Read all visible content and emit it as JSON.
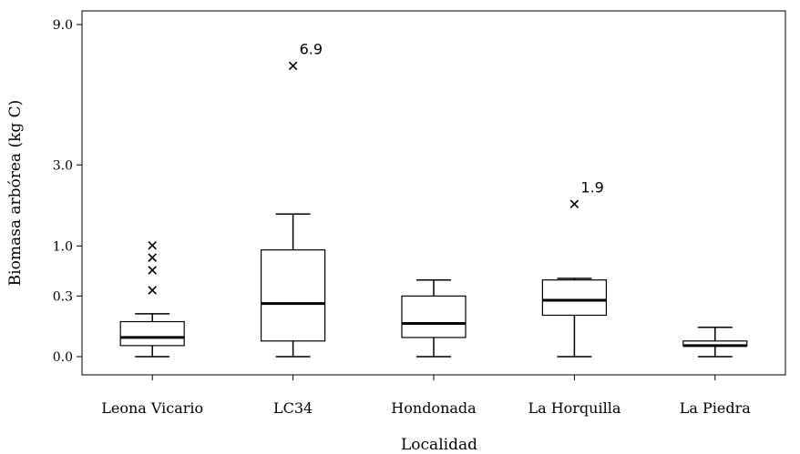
{
  "chart_data": {
    "type": "boxplot",
    "xlabel": "Localidad",
    "ylabel": "Biomasa arbórea (kg C)",
    "y_scale": "sqrt",
    "y_ticks": [
      {
        "value": 0.0,
        "label": "0.0"
      },
      {
        "value": 0.3,
        "label": "0.3"
      },
      {
        "value": 1.0,
        "label": "1.0"
      },
      {
        "value": 3.0,
        "label": "3.0"
      },
      {
        "value": 9.0,
        "label": "9.0"
      }
    ],
    "ylim": [
      0,
      9.2
    ],
    "categories": [
      "Leona Vicario",
      "LC34",
      "Hondonada",
      "La Horquilla",
      "La Piedra"
    ],
    "boxes": [
      {
        "category": "Leona Vicario",
        "whisker_low": 0.0,
        "q1": 0.01,
        "median": 0.03,
        "q3": 0.1,
        "whisker_high": 0.15,
        "outliers": [
          {
            "value": 0.36
          },
          {
            "value": 0.61
          },
          {
            "value": 0.8
          },
          {
            "value": 1.01
          }
        ]
      },
      {
        "category": "LC34",
        "whisker_low": 0.0,
        "q1": 0.02,
        "median": 0.23,
        "q3": 0.93,
        "whisker_high": 1.66,
        "outliers": [
          {
            "value": 6.9,
            "label": "6.9"
          }
        ]
      },
      {
        "category": "Hondonada",
        "whisker_low": 0.0,
        "q1": 0.03,
        "median": 0.09,
        "q3": 0.3,
        "whisker_high": 0.48,
        "outliers": []
      },
      {
        "category": "La Horquilla",
        "whisker_low": 0.0,
        "q1": 0.14,
        "median": 0.26,
        "q3": 0.48,
        "whisker_high": 0.5,
        "outliers": [
          {
            "value": 1.9,
            "label": "1.9"
          }
        ]
      },
      {
        "category": "La Piedra",
        "whisker_low": 0.0,
        "q1": 0.01,
        "median": 0.01,
        "q3": 0.02,
        "whisker_high": 0.07,
        "outliers": []
      }
    ],
    "grid": false,
    "legend": "none"
  }
}
